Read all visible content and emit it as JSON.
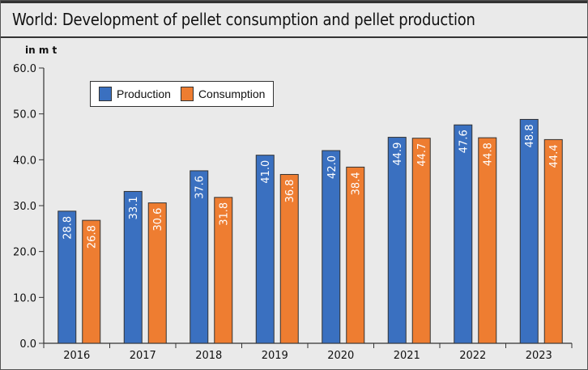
{
  "title": "World: Development of pellet consumption and pellet production",
  "chart_data": {
    "type": "bar",
    "unit_label": "in m t",
    "categories": [
      "2016",
      "2017",
      "2018",
      "2019",
      "2020",
      "2021",
      "2022",
      "2023"
    ],
    "series": [
      {
        "name": "Production",
        "color": "#3a70c0",
        "values": [
          28.8,
          33.1,
          37.6,
          41.0,
          42.0,
          44.9,
          47.6,
          48.8
        ]
      },
      {
        "name": "Consumption",
        "color": "#ee7d31",
        "values": [
          26.8,
          30.6,
          31.8,
          36.8,
          38.4,
          44.7,
          44.8,
          44.4
        ]
      }
    ],
    "ylim": [
      0,
      60
    ],
    "yticks": [
      "0.0",
      "10.0",
      "20.0",
      "30.0",
      "40.0",
      "50.0",
      "60.0"
    ],
    "legend_position": "top-left",
    "data_labels": "inside-top-rotated",
    "grid": false
  }
}
